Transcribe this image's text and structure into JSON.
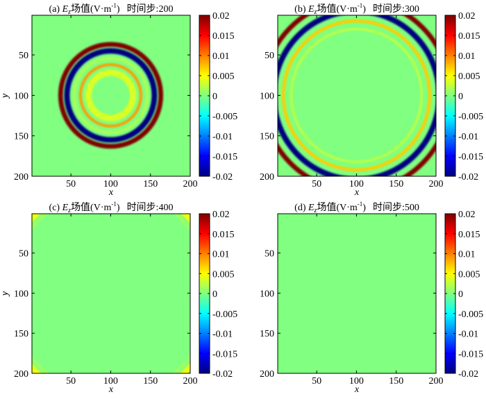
{
  "chart_data": [
    {
      "type": "heatmap",
      "panel": "(a)",
      "title": {
        "prefix": "(a) ",
        "var": "E",
        "sub": "z",
        "field": "场值(V·m",
        "sup": "-1",
        "close": ")",
        "step_label": "时间步:200"
      },
      "time_step": 200,
      "xlabel": "x",
      "ylabel": "y",
      "x_ticks": [
        "50",
        "100",
        "150",
        "200"
      ],
      "y_ticks": [
        "50",
        "100",
        "150",
        "200"
      ],
      "xlim": [
        1,
        200
      ],
      "ylim": [
        1,
        200
      ],
      "clim": [
        -0.02,
        0.02
      ],
      "colorbar_ticks": [
        "0.02",
        "0.015",
        "0.01",
        "0.005",
        "0",
        "-0.005",
        "-0.01",
        "-0.015",
        "-0.02"
      ],
      "pattern": "ring",
      "center": [
        100,
        100
      ],
      "rings": [
        {
          "radius": 63,
          "width": 6,
          "value": 0.02
        },
        {
          "radius": 55,
          "width": 7,
          "value": -0.02
        },
        {
          "radius": 46,
          "width": 3,
          "value": 0.002
        },
        {
          "radius": 38,
          "width": 3.5,
          "value": 0.009
        },
        {
          "radius": 28,
          "width": 8,
          "value": 0.0035
        }
      ]
    },
    {
      "type": "heatmap",
      "panel": "(b)",
      "title": {
        "prefix": "(b) ",
        "var": "E",
        "sub": "z",
        "field": "场值(V·m",
        "sup": "-1",
        "close": ")",
        "step_label": "时间步:300"
      },
      "time_step": 300,
      "xlabel": "x",
      "ylabel": "y",
      "x_ticks": [
        "50",
        "100",
        "150",
        "200"
      ],
      "y_ticks": [
        "50",
        "100",
        "150",
        "200"
      ],
      "xlim": [
        1,
        200
      ],
      "ylim": [
        1,
        200
      ],
      "clim": [
        -0.02,
        0.02
      ],
      "colorbar_ticks": [
        "0.02",
        "0.015",
        "0.01",
        "0.005",
        "0",
        "-0.005",
        "-0.01",
        "-0.015",
        "-0.02"
      ],
      "pattern": "ring",
      "center": [
        100,
        100
      ],
      "rings": [
        {
          "radius": 118,
          "width": 6,
          "value": 0.02
        },
        {
          "radius": 104,
          "width": 7,
          "value": -0.02
        },
        {
          "radius": 92,
          "width": 4,
          "value": 0.007
        },
        {
          "radius": 82,
          "width": 3,
          "value": 0.0025
        }
      ]
    },
    {
      "type": "heatmap",
      "panel": "(c)",
      "title": {
        "prefix": "(c) ",
        "var": "E",
        "sub": "z",
        "field": "场值(V·m",
        "sup": "-1",
        "close": ")",
        "step_label": "时间步:400"
      },
      "time_step": 400,
      "xlabel": "x",
      "ylabel": "y",
      "x_ticks": [
        "50",
        "100",
        "150",
        "200"
      ],
      "y_ticks": [
        "50",
        "100",
        "150",
        "200"
      ],
      "xlim": [
        1,
        200
      ],
      "ylim": [
        1,
        200
      ],
      "clim": [
        -0.02,
        0.02
      ],
      "colorbar_ticks": [
        "0.02",
        "0.015",
        "0.01",
        "0.005",
        "0",
        "-0.005",
        "-0.01",
        "-0.015",
        "-0.02"
      ],
      "pattern": "ring",
      "center": [
        100,
        100
      ],
      "rings": [
        {
          "radius": 146,
          "width": 9,
          "value": -0.015
        },
        {
          "radius": 136,
          "width": 7,
          "value": 0.0045
        },
        {
          "radius": 128,
          "width": 3,
          "value": 0.0015
        }
      ]
    },
    {
      "type": "heatmap",
      "panel": "(d)",
      "title": {
        "prefix": "(d) ",
        "var": "E",
        "sub": "z",
        "field": "场值(V·m",
        "sup": "-1",
        "close": ")",
        "step_label": "时间步:500"
      },
      "time_step": 500,
      "xlabel": "x",
      "ylabel": "y",
      "x_ticks": [
        "50",
        "100",
        "150",
        "200"
      ],
      "y_ticks": [
        "50",
        "100",
        "150",
        "200"
      ],
      "xlim": [
        1,
        200
      ],
      "ylim": [
        1,
        200
      ],
      "clim": [
        -0.02,
        0.02
      ],
      "colorbar_ticks": [
        "0.02",
        "0.015",
        "0.01",
        "0.005",
        "0",
        "-0.005",
        "-0.01",
        "-0.015",
        "-0.02"
      ],
      "pattern": "uniform",
      "center": [
        100,
        100
      ],
      "rings": []
    }
  ]
}
